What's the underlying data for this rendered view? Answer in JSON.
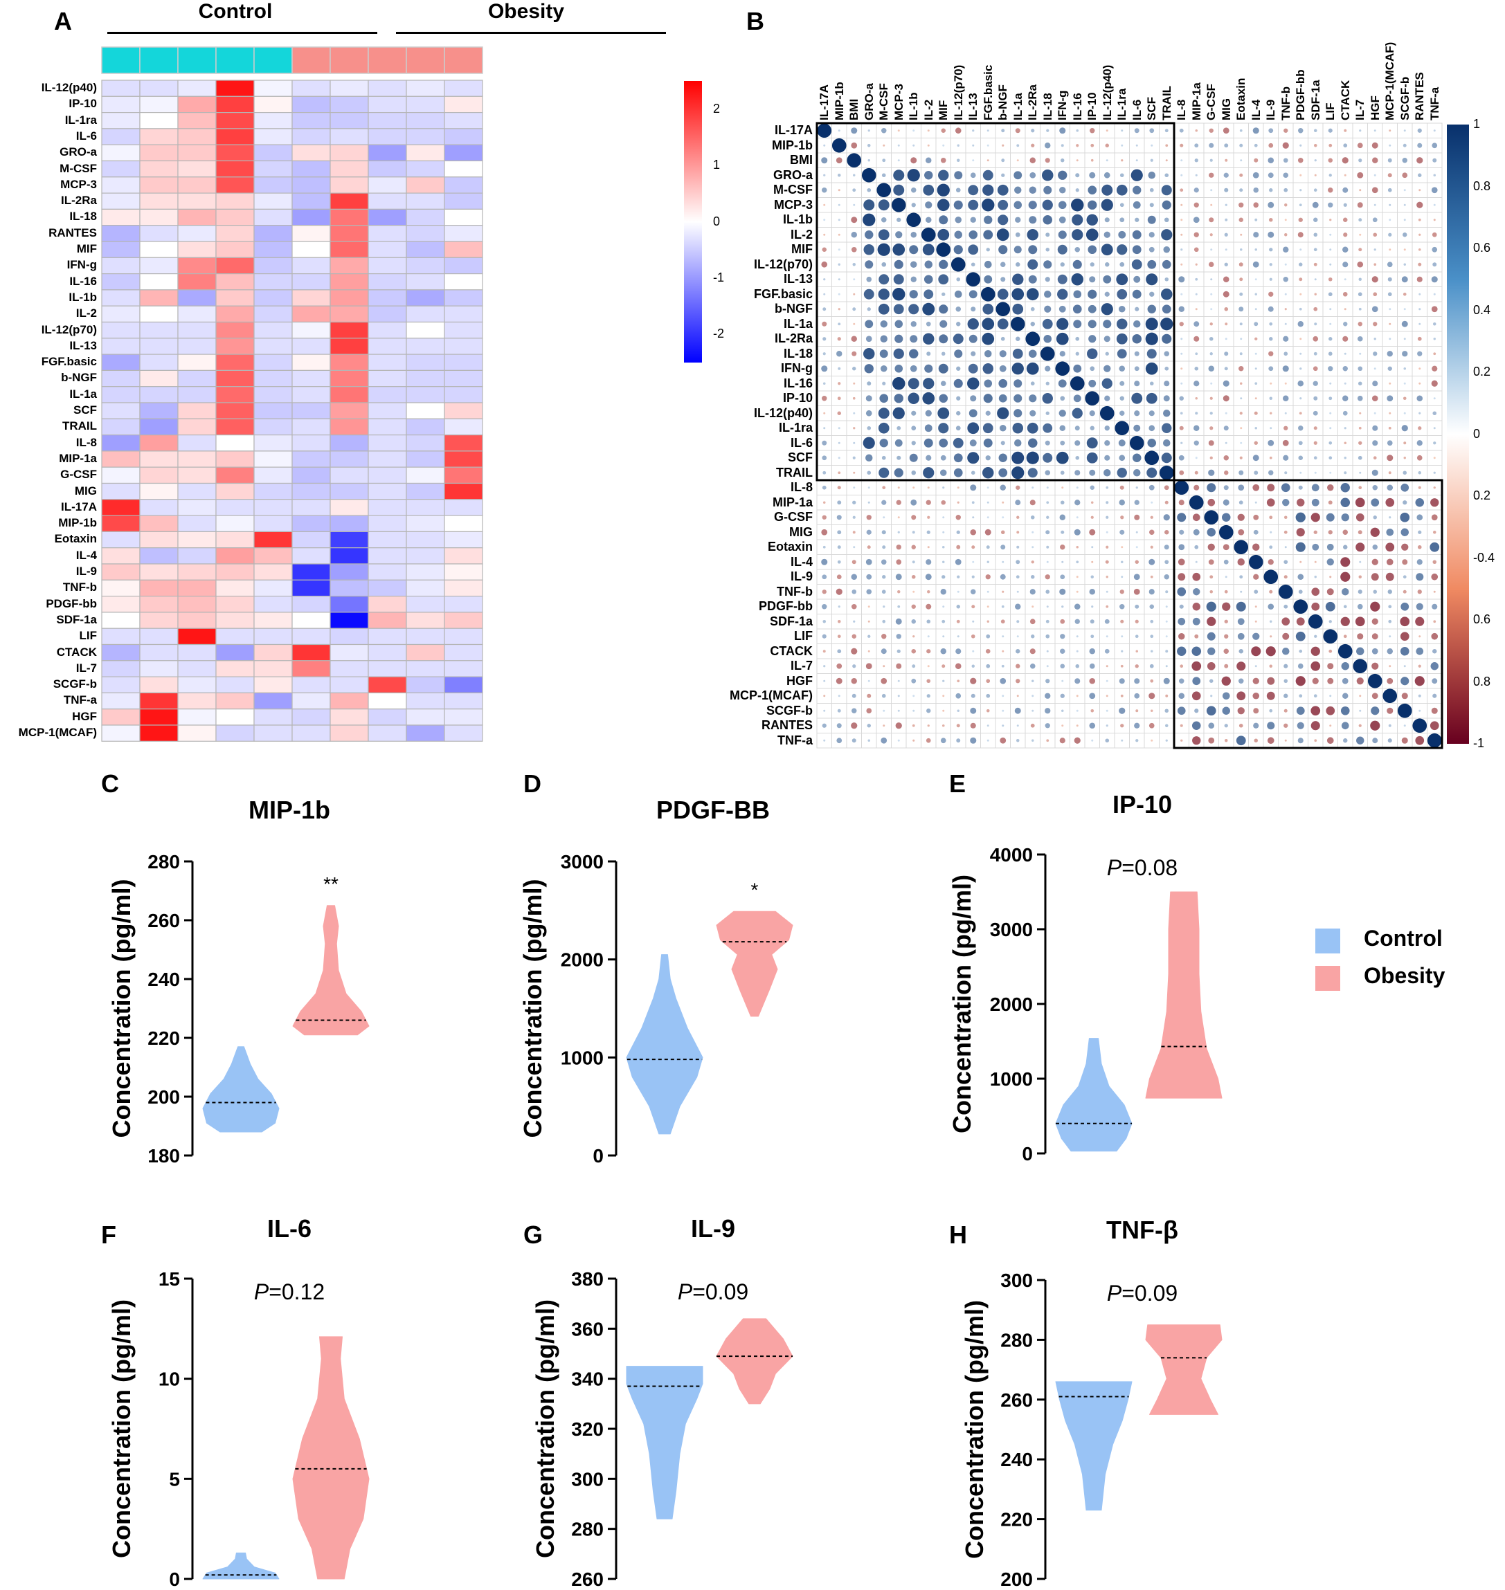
{
  "panels": {
    "A": "A",
    "B": "B",
    "C": "C",
    "D": "D",
    "E": "E",
    "F": "F",
    "G": "G",
    "H": "H"
  },
  "heatmap": {
    "groups": [
      "Control",
      "Obesity"
    ],
    "group_colors": [
      "#14D6DA",
      "#F7908B"
    ],
    "rows": [
      "IL-12(p40)",
      "IP-10",
      "IL-1ra",
      "IL-6",
      "GRO-a",
      "M-CSF",
      "MCP-3",
      "IL-2Ra",
      "IL-18",
      "RANTES",
      "MIF",
      "IFN-g",
      "IL-16",
      "IL-1b",
      "IL-2",
      "IL-12(p70)",
      "IL-13",
      "FGF.basic",
      "b-NGF",
      "IL-1a",
      "SCF",
      "TRAIL",
      "IL-8",
      "MIP-1a",
      "G-CSF",
      "MIG",
      "IL-17A",
      "MIP-1b",
      "Eotaxin",
      "IL-4",
      "IL-9",
      "TNF-b",
      "PDGF-bb",
      "SDF-1a",
      "LIF",
      "CTACK",
      "IL-7",
      "SCGF-b",
      "TNF-a",
      "HGF",
      "MCP-1(MCAF)"
    ],
    "values": [
      [
        -0.3,
        -0.3,
        -0.2,
        2.2,
        -0.1,
        -0.3,
        -0.2,
        -0.3,
        -0.2,
        -0.3
      ],
      [
        -0.2,
        -0.1,
        0.8,
        1.8,
        0.1,
        -0.6,
        -0.5,
        -0.3,
        -0.3,
        0.2
      ],
      [
        -0.2,
        0.0,
        0.6,
        1.7,
        -0.2,
        -0.5,
        -0.5,
        -0.4,
        -0.4,
        -0.3
      ],
      [
        -0.4,
        0.4,
        0.5,
        1.8,
        -0.2,
        -0.4,
        -0.3,
        -0.4,
        -0.4,
        -0.5
      ],
      [
        -0.1,
        0.5,
        0.5,
        1.6,
        -0.5,
        0.3,
        0.4,
        -0.9,
        0.2,
        -0.9
      ],
      [
        -0.4,
        0.4,
        0.3,
        1.7,
        -0.4,
        -0.6,
        0.4,
        -0.5,
        -0.4,
        0.0
      ],
      [
        -0.2,
        0.5,
        0.5,
        1.6,
        -0.5,
        -0.6,
        0.4,
        -0.2,
        0.5,
        -0.5
      ],
      [
        -0.2,
        0.3,
        0.3,
        0.4,
        -0.2,
        -0.6,
        1.8,
        -0.3,
        -0.3,
        -0.5
      ],
      [
        0.2,
        0.2,
        0.7,
        0.5,
        -0.3,
        -0.9,
        1.3,
        -0.9,
        -0.4,
        0.0
      ],
      [
        -0.7,
        -0.3,
        -0.2,
        0.4,
        -0.7,
        0.1,
        1.3,
        -0.3,
        -0.4,
        -0.2
      ],
      [
        -0.6,
        0.0,
        0.3,
        0.5,
        -0.6,
        0.0,
        1.4,
        -0.3,
        -0.6,
        0.6
      ],
      [
        -0.3,
        -0.2,
        1.1,
        1.4,
        -0.5,
        -0.3,
        0.8,
        -0.3,
        -0.4,
        -0.5
      ],
      [
        -0.5,
        0.0,
        1.2,
        0.6,
        -0.4,
        -0.4,
        0.9,
        -0.4,
        -0.3,
        0.0
      ],
      [
        -0.3,
        0.7,
        -0.8,
        0.5,
        -0.5,
        0.4,
        0.9,
        -0.5,
        -0.8,
        -0.5
      ],
      [
        -0.2,
        0.0,
        -0.2,
        0.8,
        -0.4,
        0.8,
        0.8,
        -0.5,
        -0.3,
        -0.3
      ],
      [
        -0.3,
        -0.3,
        -0.3,
        1.1,
        -0.3,
        -0.1,
        1.8,
        -0.3,
        0.0,
        -0.3
      ],
      [
        -0.3,
        -0.3,
        -0.3,
        1.0,
        -0.3,
        -0.3,
        1.8,
        -0.3,
        -0.3,
        -0.3
      ],
      [
        -0.8,
        -0.3,
        0.1,
        1.4,
        -0.4,
        0.1,
        1.1,
        -0.3,
        -0.4,
        -0.4
      ],
      [
        -0.4,
        0.2,
        -0.4,
        1.5,
        -0.4,
        -0.3,
        1.2,
        -0.3,
        -0.4,
        -0.4
      ],
      [
        -0.4,
        -0.4,
        -0.4,
        1.4,
        -0.4,
        -0.3,
        1.3,
        -0.4,
        -0.4,
        -0.4
      ],
      [
        -0.3,
        -0.7,
        0.4,
        1.5,
        -0.5,
        -0.5,
        0.9,
        -0.3,
        0.0,
        0.4
      ],
      [
        -0.4,
        -0.9,
        0.4,
        1.5,
        -0.4,
        -0.3,
        1.0,
        -0.3,
        -0.5,
        -0.2
      ],
      [
        -0.9,
        0.9,
        -0.3,
        0.0,
        -0.2,
        -0.3,
        -0.7,
        -0.3,
        -0.4,
        1.6
      ],
      [
        0.6,
        0.3,
        0.3,
        0.5,
        -0.1,
        -0.5,
        -0.5,
        -0.3,
        -0.5,
        1.7
      ],
      [
        -0.1,
        0.4,
        0.3,
        1.2,
        -0.2,
        -0.6,
        -0.3,
        -0.3,
        -0.1,
        1.3
      ],
      [
        -0.3,
        0.1,
        -0.3,
        0.4,
        -0.4,
        -0.5,
        -0.5,
        -0.3,
        -0.5,
        1.9
      ],
      [
        2.0,
        -0.3,
        -0.2,
        -0.3,
        -0.3,
        -0.3,
        0.2,
        -0.3,
        -0.3,
        -0.3
      ],
      [
        1.7,
        0.6,
        -0.3,
        -0.1,
        -0.3,
        -0.6,
        -0.7,
        -0.3,
        -0.2,
        0.0
      ],
      [
        -0.3,
        0.3,
        0.2,
        0.3,
        1.9,
        -0.4,
        -1.8,
        -0.3,
        -0.3,
        -0.2
      ],
      [
        0.3,
        -0.6,
        -0.4,
        0.9,
        0.6,
        -0.3,
        -1.9,
        -0.3,
        -0.3,
        0.3
      ],
      [
        0.5,
        0.3,
        0.4,
        0.5,
        0.3,
        -1.9,
        -0.9,
        -0.3,
        -0.2,
        0.1
      ],
      [
        0.1,
        0.7,
        0.7,
        0.2,
        -0.2,
        -1.9,
        -0.6,
        -0.5,
        -0.2,
        0.2
      ],
      [
        0.2,
        0.5,
        0.6,
        0.4,
        -0.3,
        -0.4,
        -1.3,
        0.4,
        -0.3,
        -0.3
      ],
      [
        0.0,
        0.4,
        0.5,
        0.3,
        0.2,
        0.0,
        -2.3,
        0.7,
        0.3,
        0.5
      ],
      [
        -0.3,
        -0.3,
        2.2,
        -0.3,
        -0.3,
        -0.3,
        -0.4,
        -0.3,
        -0.3,
        -0.3
      ],
      [
        -0.7,
        -0.3,
        -0.3,
        -0.9,
        0.4,
        1.9,
        -0.2,
        -0.3,
        0.5,
        -0.3
      ],
      [
        -0.4,
        -0.2,
        -0.3,
        0.3,
        0.3,
        1.2,
        -0.3,
        -0.3,
        -0.3,
        -0.3
      ],
      [
        -0.3,
        0.3,
        -0.2,
        -0.3,
        0.2,
        -0.3,
        -0.3,
        1.7,
        -0.5,
        -1.2
      ],
      [
        -0.2,
        1.9,
        0.3,
        0.5,
        -0.9,
        -0.2,
        0.7,
        0.0,
        -0.3,
        -0.3
      ],
      [
        0.5,
        2.2,
        -0.1,
        0.0,
        -0.3,
        -0.4,
        0.3,
        -0.4,
        -0.2,
        -0.2
      ],
      [
        -0.1,
        2.2,
        0.1,
        -0.4,
        -0.3,
        -0.3,
        0.4,
        -0.3,
        -0.8,
        -0.3
      ]
    ],
    "scale_ticks": [
      "2",
      "1",
      "0",
      "-1",
      "-2"
    ],
    "scale_range": [
      -2.5,
      2.5
    ]
  },
  "corr": {
    "labels": [
      "IL-17A",
      "MIP-1b",
      "BMI",
      "GRO-a",
      "M-CSF",
      "MCP-3",
      "IL-1b",
      "IL-2",
      "MIF",
      "IL-12(p70)",
      "IL-13",
      "FGF.basic",
      "b-NGF",
      "IL-1a",
      "IL-2Ra",
      "IL-18",
      "IFN-g",
      "IL-16",
      "IP-10",
      "IL-12(p40)",
      "IL-1ra",
      "IL-6",
      "SCF",
      "TRAIL",
      "IL-8",
      "MIP-1a",
      "G-CSF",
      "MIG",
      "Eotaxin",
      "IL-4",
      "IL-9",
      "TNF-b",
      "PDGF-bb",
      "SDF-1a",
      "LIF",
      "CTACK",
      "IL-7",
      "HGF",
      "MCP-1(MCAF)",
      "SCGF-b",
      "RANTES",
      "TNF-a"
    ],
    "scale_ticks": [
      "1",
      "0.8",
      "0.6",
      "0.4",
      "0.2",
      "0",
      "0.2",
      "-0.4",
      "0.6",
      "0.8",
      "-1"
    ],
    "cluster_boxes": [
      {
        "from": "IL-17A",
        "to": "TRAIL"
      },
      {
        "from": "IL-8",
        "to": "TNF-a"
      }
    ]
  },
  "violins": {
    "ylabel": "Concentration (pg/ml)",
    "colors": {
      "control": "#99C3F5",
      "obesity": "#F9A4A4"
    },
    "items": [
      {
        "panel": "C",
        "title": "MIP-1b",
        "ticks": [
          "280",
          "260",
          "240",
          "220",
          "200",
          "180"
        ],
        "ymin": 180,
        "ymax": 280,
        "annot": "**",
        "control": {
          "min": 188,
          "max": 217,
          "median": 198,
          "shape": [
            [
              188,
              0.55
            ],
            [
              191,
              0.9
            ],
            [
              196,
              1.0
            ],
            [
              201,
              0.8
            ],
            [
              206,
              0.45
            ],
            [
              211,
              0.25
            ],
            [
              217,
              0.08
            ]
          ]
        },
        "obesity": {
          "min": 221,
          "max": 265,
          "median": 226,
          "shape": [
            [
              221,
              0.7
            ],
            [
              224,
              1.0
            ],
            [
              229,
              0.8
            ],
            [
              235,
              0.4
            ],
            [
              243,
              0.2
            ],
            [
              252,
              0.15
            ],
            [
              258,
              0.2
            ],
            [
              265,
              0.1
            ]
          ]
        }
      },
      {
        "panel": "D",
        "title": "PDGF-BB",
        "ticks": [
          "3000",
          "2000",
          "1000",
          "0"
        ],
        "ymin": 0,
        "ymax": 3000,
        "annot": "*",
        "control": {
          "min": 220,
          "max": 2050,
          "median": 980,
          "shape": [
            [
              220,
              0.15
            ],
            [
              500,
              0.4
            ],
            [
              800,
              0.85
            ],
            [
              1000,
              1.0
            ],
            [
              1300,
              0.6
            ],
            [
              1600,
              0.3
            ],
            [
              1800,
              0.15
            ],
            [
              2050,
              0.08
            ]
          ]
        },
        "obesity": {
          "min": 1420,
          "max": 2490,
          "median": 2180,
          "shape": [
            [
              1420,
              0.1
            ],
            [
              1700,
              0.4
            ],
            [
              1900,
              0.6
            ],
            [
              2050,
              0.45
            ],
            [
              2200,
              0.9
            ],
            [
              2350,
              1.0
            ],
            [
              2490,
              0.55
            ]
          ]
        }
      },
      {
        "panel": "E",
        "title": "IP-10",
        "ticks": [
          "4000",
          "3000",
          "2000",
          "1000",
          "0"
        ],
        "ymin": 0,
        "ymax": 4000,
        "annot": "P=0.08",
        "control": {
          "min": 30,
          "max": 1540,
          "median": 400,
          "shape": [
            [
              30,
              0.6
            ],
            [
              200,
              0.85
            ],
            [
              400,
              1.0
            ],
            [
              650,
              0.8
            ],
            [
              900,
              0.4
            ],
            [
              1200,
              0.2
            ],
            [
              1540,
              0.12
            ]
          ]
        },
        "obesity": {
          "min": 740,
          "max": 3500,
          "median": 1430,
          "shape": [
            [
              740,
              1.0
            ],
            [
              1000,
              0.9
            ],
            [
              1400,
              0.6
            ],
            [
              1900,
              0.45
            ],
            [
              2400,
              0.4
            ],
            [
              3000,
              0.4
            ],
            [
              3500,
              0.35
            ]
          ]
        }
      },
      {
        "panel": "F",
        "title": "IL-6",
        "ticks": [
          "15",
          "10",
          "5",
          "0"
        ],
        "ymin": 0,
        "ymax": 15,
        "annot": "P=0.12",
        "control": {
          "min": 0,
          "max": 1.3,
          "median": 0.2,
          "shape": [
            [
              0,
              1.0
            ],
            [
              0.3,
              0.9
            ],
            [
              0.6,
              0.35
            ],
            [
              1.0,
              0.15
            ],
            [
              1.3,
              0.12
            ]
          ]
        },
        "obesity": {
          "min": 0,
          "max": 12.1,
          "median": 5.5,
          "shape": [
            [
              0,
              0.35
            ],
            [
              1.5,
              0.5
            ],
            [
              3,
              0.85
            ],
            [
              5,
              1.0
            ],
            [
              7,
              0.75
            ],
            [
              9,
              0.35
            ],
            [
              11,
              0.25
            ],
            [
              12.1,
              0.3
            ]
          ]
        }
      },
      {
        "panel": "G",
        "title": "IL-9",
        "ticks": [
          "380",
          "360",
          "340",
          "320",
          "300",
          "280",
          "260"
        ],
        "ymin": 260,
        "ymax": 380,
        "annot": "P=0.09",
        "control": {
          "min": 284,
          "max": 345,
          "median": 337,
          "shape": [
            [
              284,
              0.2
            ],
            [
              295,
              0.3
            ],
            [
              310,
              0.4
            ],
            [
              322,
              0.55
            ],
            [
              332,
              0.85
            ],
            [
              338,
              1.0
            ],
            [
              345,
              1.0
            ]
          ]
        },
        "obesity": {
          "min": 330,
          "max": 364,
          "median": 349,
          "shape": [
            [
              330,
              0.15
            ],
            [
              336,
              0.4
            ],
            [
              342,
              0.55
            ],
            [
              349,
              1.0
            ],
            [
              356,
              0.75
            ],
            [
              364,
              0.3
            ]
          ]
        }
      },
      {
        "panel": "H",
        "title": "TNF-β",
        "ticks": [
          "300",
          "280",
          "260",
          "240",
          "220",
          "200"
        ],
        "ymin": 200,
        "ymax": 300,
        "annot": "P=0.09",
        "control": {
          "min": 223,
          "max": 266,
          "median": 261,
          "shape": [
            [
              223,
              0.2
            ],
            [
              235,
              0.3
            ],
            [
              245,
              0.5
            ],
            [
              253,
              0.75
            ],
            [
              260,
              0.9
            ],
            [
              266,
              1.0
            ]
          ]
        },
        "obesity": {
          "min": 255,
          "max": 285,
          "median": 274,
          "shape": [
            [
              255,
              0.9
            ],
            [
              260,
              0.7
            ],
            [
              267,
              0.45
            ],
            [
              274,
              0.6
            ],
            [
              280,
              1.0
            ],
            [
              285,
              0.95
            ]
          ]
        }
      }
    ]
  },
  "legend": {
    "control": "Control",
    "obesity": "Obesity"
  }
}
